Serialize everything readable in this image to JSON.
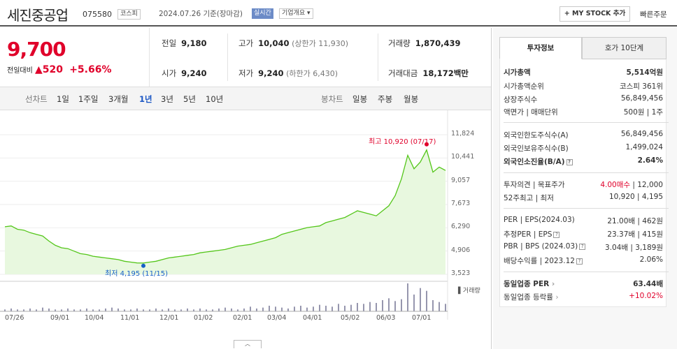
{
  "header": {
    "company": "세진중공업",
    "code": "075580",
    "market_badge": "코스피",
    "date": "2024.07.26",
    "date_suffix": "기준(장마감)",
    "live_badge": "실시간",
    "overview_badge": "기업개요",
    "my_stock": "+ MY STOCK 추가",
    "quick_order": "빠른주문"
  },
  "price": {
    "current": "9,700",
    "compare_label": "전일대비",
    "change": "520",
    "change_pct": "+5.66%"
  },
  "summary": {
    "prev_close": {
      "label": "전일",
      "value": "9,180"
    },
    "high": {
      "label": "고가",
      "value": "10,040",
      "sub": "(상한가 11,930)"
    },
    "volume": {
      "label": "거래량",
      "value": "1,870,439"
    },
    "open": {
      "label": "시가",
      "value": "9,240"
    },
    "low": {
      "label": "저가",
      "value": "9,240",
      "sub": "(하한가 6,430)"
    },
    "amount": {
      "label": "거래대금",
      "value": "18,172",
      "unit": "백만"
    }
  },
  "chart_tabs": {
    "line_label": "선차트",
    "periods": [
      "1일",
      "1주일",
      "3개월",
      "1년",
      "3년",
      "5년",
      "10년"
    ],
    "active": "1년",
    "candle_label": "봉차트",
    "candles": [
      "일봉",
      "주봉",
      "월봉"
    ]
  },
  "chart_data": {
    "type": "area",
    "y_ticks": [
      "11,824",
      "10,441",
      "9,057",
      "7,673",
      "6,290",
      "4,906",
      "3,523"
    ],
    "ylim": [
      3523,
      11824
    ],
    "x_ticks": [
      "07/26",
      "09/01",
      "10/04",
      "11/01",
      "12/01",
      "01/02",
      "02/01",
      "03/04",
      "04/01",
      "05/02",
      "06/03",
      "07/01"
    ],
    "max_label": "최고 10,920 (07/17)",
    "min_label": "최저 4,195 (11/15)",
    "volume_label": "거래량",
    "series": [
      {
        "values": [
          6350,
          6400,
          6200,
          6150,
          6000,
          5900,
          5800,
          5500,
          5250,
          5100,
          5050,
          4900,
          4750,
          4700,
          4600,
          4550,
          4500,
          4450,
          4400,
          4300,
          4250,
          4200,
          4195,
          4250,
          4300,
          4400,
          4500,
          4550,
          4600,
          4650,
          4700,
          4800,
          4850,
          4900,
          4950,
          5000,
          5100,
          5200,
          5250,
          5300,
          5400,
          5500,
          5600,
          5700,
          5900,
          6000,
          6100,
          6200,
          6300,
          6350,
          6400,
          6600,
          6700,
          6800,
          6900,
          7100,
          7300,
          7200,
          7100,
          7000,
          7300,
          7600,
          8200,
          9200,
          10600,
          9800,
          10200,
          10920,
          9600,
          9900,
          9700
        ]
      }
    ],
    "volume": [
      2,
      3,
      2,
      2,
      3,
      2,
      4,
      3,
      2,
      2,
      3,
      2,
      2,
      3,
      2,
      2,
      3,
      4,
      3,
      2,
      2,
      3,
      2,
      2,
      3,
      2,
      3,
      2,
      2,
      3,
      2,
      3,
      2,
      2,
      3,
      4,
      3,
      2,
      3,
      5,
      3,
      4,
      6,
      5,
      4,
      3,
      5,
      6,
      4,
      5,
      7,
      6,
      5,
      8,
      6,
      7,
      9,
      8,
      10,
      9,
      12,
      14,
      11,
      13,
      30,
      18,
      25,
      22,
      12,
      10,
      8
    ]
  },
  "tabs_right": {
    "active": "투자정보",
    "other": "호가 10단계"
  },
  "info": {
    "market_cap": {
      "label": "시가총액",
      "value": "5,514억원"
    },
    "cap_rank": {
      "label": "시가총액순위",
      "value": "코스피 361위"
    },
    "shares": {
      "label": "상장주식수",
      "value": "56,849,456"
    },
    "par": {
      "label": "액면가 | 매매단위",
      "value": "500원 | 1주"
    },
    "foreign_limit": {
      "label": "외국인한도주식수(A)",
      "value": "56,849,456"
    },
    "foreign_hold": {
      "label": "외국인보유주식수(B)",
      "value": "1,499,024"
    },
    "foreign_ratio": {
      "label": "외국인소진율(B/A)",
      "value": "2.64%"
    },
    "opinion": {
      "label": "투자의견 | 목표주가",
      "value1": "4.00매수",
      "value2": "12,000"
    },
    "week52": {
      "label": "52주최고 | 최저",
      "value": "10,920 | 4,195"
    },
    "per": {
      "label": "PER | EPS(2024.03)",
      "value": "21.00배 | 462원"
    },
    "est_per": {
      "label": "추정PER | EPS",
      "value": "23.37배 | 415원"
    },
    "pbr": {
      "label": "PBR | BPS (2024.03)",
      "value": "3.04배 | 3,189원"
    },
    "dividend": {
      "label": "배당수익률 | 2023.12",
      "value": "2.06%"
    },
    "sector_per": {
      "label": "동일업종 PER",
      "value": "63.44배"
    },
    "sector_change": {
      "label": "동일업종 등락률",
      "value": "+10.02%"
    }
  },
  "colors": {
    "up": "#e0002a",
    "line": "#54c61a",
    "fill": "#e8f8df",
    "min_dot": "#1660c7",
    "max_dot": "#e0002a"
  }
}
